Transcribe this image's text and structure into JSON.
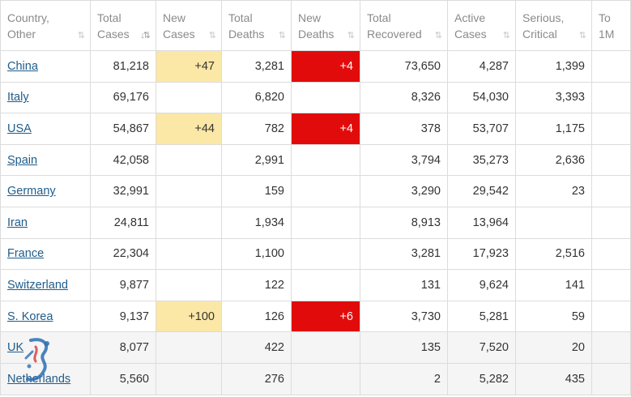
{
  "table": {
    "headers": [
      {
        "line1": "Country,",
        "line2": "Other",
        "sort": "⇅",
        "active": false
      },
      {
        "line1": "Total",
        "line2": "Cases",
        "sort": "↓⇅",
        "active": true
      },
      {
        "line1": "New",
        "line2": "Cases",
        "sort": "⇅",
        "active": false
      },
      {
        "line1": "Total",
        "line2": "Deaths",
        "sort": "⇅",
        "active": false
      },
      {
        "line1": "New",
        "line2": "Deaths",
        "sort": "⇅",
        "active": false
      },
      {
        "line1": "Total",
        "line2": "Recovered",
        "sort": "⇅",
        "active": false
      },
      {
        "line1": "Active",
        "line2": "Cases",
        "sort": "⇅",
        "active": false
      },
      {
        "line1": "Serious,",
        "line2": "Critical",
        "sort": "⇅",
        "active": false
      },
      {
        "line1": "To",
        "line2": "1M",
        "sort": "",
        "active": false
      }
    ],
    "rows": [
      {
        "country": "China",
        "total_cases": "81,218",
        "new_cases": "+47",
        "total_deaths": "3,281",
        "new_deaths": "+4",
        "total_recovered": "73,650",
        "active_cases": "4,287",
        "serious": "1,399",
        "tot_1m": ""
      },
      {
        "country": "Italy",
        "total_cases": "69,176",
        "new_cases": "",
        "total_deaths": "6,820",
        "new_deaths": "",
        "total_recovered": "8,326",
        "active_cases": "54,030",
        "serious": "3,393",
        "tot_1m": ""
      },
      {
        "country": "USA",
        "total_cases": "54,867",
        "new_cases": "+44",
        "total_deaths": "782",
        "new_deaths": "+4",
        "total_recovered": "378",
        "active_cases": "53,707",
        "serious": "1,175",
        "tot_1m": ""
      },
      {
        "country": "Spain",
        "total_cases": "42,058",
        "new_cases": "",
        "total_deaths": "2,991",
        "new_deaths": "",
        "total_recovered": "3,794",
        "active_cases": "35,273",
        "serious": "2,636",
        "tot_1m": ""
      },
      {
        "country": "Germany",
        "total_cases": "32,991",
        "new_cases": "",
        "total_deaths": "159",
        "new_deaths": "",
        "total_recovered": "3,290",
        "active_cases": "29,542",
        "serious": "23",
        "tot_1m": ""
      },
      {
        "country": "Iran",
        "total_cases": "24,811",
        "new_cases": "",
        "total_deaths": "1,934",
        "new_deaths": "",
        "total_recovered": "8,913",
        "active_cases": "13,964",
        "serious": "",
        "tot_1m": ""
      },
      {
        "country": "France",
        "total_cases": "22,304",
        "new_cases": "",
        "total_deaths": "1,100",
        "new_deaths": "",
        "total_recovered": "3,281",
        "active_cases": "17,923",
        "serious": "2,516",
        "tot_1m": ""
      },
      {
        "country": "Switzerland",
        "total_cases": "9,877",
        "new_cases": "",
        "total_deaths": "122",
        "new_deaths": "",
        "total_recovered": "131",
        "active_cases": "9,624",
        "serious": "141",
        "tot_1m": ""
      },
      {
        "country": "S. Korea",
        "total_cases": "9,137",
        "new_cases": "+100",
        "total_deaths": "126",
        "new_deaths": "+6",
        "total_recovered": "3,730",
        "active_cases": "5,281",
        "serious": "59",
        "tot_1m": ""
      },
      {
        "country": "UK",
        "total_cases": "8,077",
        "new_cases": "",
        "total_deaths": "422",
        "new_deaths": "",
        "total_recovered": "135",
        "active_cases": "7,520",
        "serious": "20",
        "tot_1m": ""
      },
      {
        "country": "Netherlands",
        "total_cases": "5,560",
        "new_cases": "",
        "total_deaths": "276",
        "new_deaths": "",
        "total_recovered": "2",
        "active_cases": "5,282",
        "serious": "435",
        "tot_1m": ""
      }
    ]
  },
  "colors": {
    "new_cases_highlight": "#fbe7a6",
    "new_deaths_highlight": "#e20b0b",
    "link": "#1f5c8a",
    "alt_row": "#f5f5f5"
  },
  "watermark": {
    "icon": "watermark-logo-icon"
  }
}
